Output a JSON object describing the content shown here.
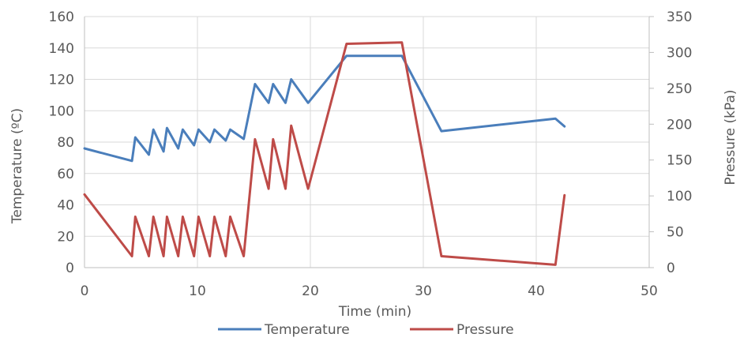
{
  "chart_data": {
    "type": "line",
    "xlabel": "Time (min)",
    "ylabel": "Temperature (ºC)",
    "y2label": "Pressure (kPa)",
    "xlim": [
      0,
      50
    ],
    "ylim": [
      0,
      160
    ],
    "y2lim": [
      0,
      350
    ],
    "xticks": [
      0,
      10,
      20,
      30,
      40,
      50
    ],
    "yticks": [
      0,
      20,
      40,
      60,
      80,
      100,
      120,
      140,
      160
    ],
    "y2ticks": [
      0,
      50,
      100,
      150,
      200,
      250,
      300,
      350
    ],
    "grid": true,
    "legend": "bottom",
    "colors": {
      "Temperature": "#4a7ebb",
      "Pressure": "#be4b48"
    },
    "series": [
      {
        "name": "Temperature",
        "axis": "left",
        "x": [
          0,
          4.2,
          4.5,
          5.7,
          6.1,
          7.0,
          7.3,
          8.3,
          8.7,
          9.7,
          10.1,
          11.1,
          11.5,
          12.5,
          12.9,
          14.1,
          15.1,
          16.3,
          16.7,
          17.8,
          18.3,
          19.8,
          23.2,
          28.1,
          31.6,
          41.7,
          42.5
        ],
        "y": [
          76,
          68,
          83,
          72,
          88,
          74,
          89,
          76,
          88,
          78,
          88,
          80,
          88,
          81,
          88,
          82,
          117,
          105,
          117,
          105,
          120,
          105,
          135,
          135,
          87,
          95,
          90
        ]
      },
      {
        "name": "Pressure",
        "axis": "right",
        "x": [
          0,
          4.2,
          4.5,
          5.7,
          6.1,
          7.0,
          7.3,
          8.3,
          8.7,
          9.7,
          10.1,
          11.1,
          11.5,
          12.5,
          12.9,
          14.1,
          15.1,
          16.3,
          16.7,
          17.8,
          18.3,
          19.8,
          23.2,
          28.1,
          31.6,
          41.7,
          42.5
        ],
        "y": [
          102,
          16,
          71,
          16,
          71,
          16,
          71,
          16,
          71,
          16,
          71,
          16,
          71,
          16,
          71,
          16,
          179,
          110,
          179,
          110,
          198,
          110,
          312,
          314,
          16,
          4,
          101
        ]
      }
    ]
  }
}
